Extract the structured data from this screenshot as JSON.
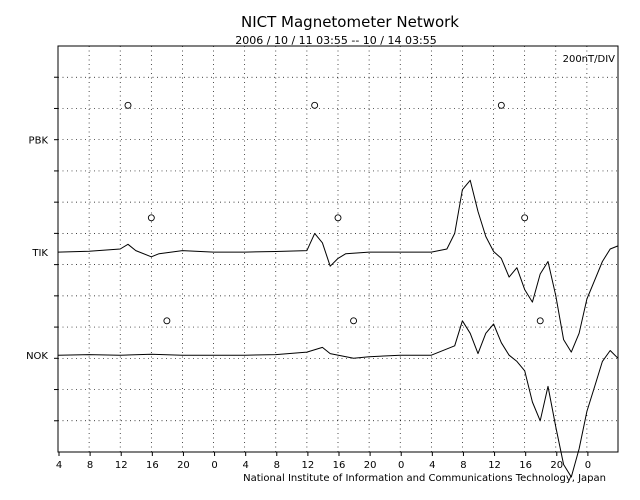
{
  "chart_data": {
    "type": "line",
    "title": "NICT Magnetometer Network",
    "subtitle": "2006 / 10 / 11   03:55 -- 10 / 14   03:55",
    "scale_label": "200nT/DIV",
    "footer": "National Institute of Information and Communications Technology, Japan",
    "x_tick_labels": [
      "4",
      "8",
      "12",
      "16",
      "20",
      "0",
      "4",
      "8",
      "12",
      "16",
      "20",
      "0",
      "4",
      "8",
      "12",
      "16",
      "20",
      "0"
    ],
    "x_range_hours": [
      0,
      72
    ],
    "y_divisions": 13,
    "grid": true,
    "series": [
      {
        "name": "PBK",
        "baseline_div": 3,
        "values": [],
        "midnight_markers_hours": [
          9,
          33,
          57
        ]
      },
      {
        "name": "TIK",
        "baseline_div": 6.6,
        "midnight_markers_hours": [
          12,
          36,
          60
        ],
        "values": [
          [
            0,
            0
          ],
          [
            4,
            0.03
          ],
          [
            8,
            0.1
          ],
          [
            9,
            0.25
          ],
          [
            10,
            0.05
          ],
          [
            12,
            -0.15
          ],
          [
            13,
            -0.05
          ],
          [
            16,
            0.05
          ],
          [
            20,
            0
          ],
          [
            24,
            0
          ],
          [
            28,
            0.02
          ],
          [
            32,
            0.05
          ],
          [
            33,
            0.6
          ],
          [
            34,
            0.3
          ],
          [
            35,
            -0.45
          ],
          [
            36,
            -0.2
          ],
          [
            37,
            -0.05
          ],
          [
            40,
            0
          ],
          [
            44,
            0
          ],
          [
            48,
            0
          ],
          [
            50,
            0.1
          ],
          [
            51,
            0.6
          ],
          [
            52,
            2.0
          ],
          [
            53,
            2.3
          ],
          [
            54,
            1.3
          ],
          [
            55,
            0.5
          ],
          [
            56,
            0.02
          ],
          [
            57,
            -0.2
          ],
          [
            58,
            -0.8
          ],
          [
            59,
            -0.5
          ],
          [
            60,
            -1.2
          ],
          [
            61,
            -1.6
          ],
          [
            62,
            -0.7
          ],
          [
            63,
            -0.3
          ],
          [
            64,
            -1.4
          ],
          [
            65,
            -2.8
          ],
          [
            66,
            -3.2
          ],
          [
            67,
            -2.6
          ],
          [
            68,
            -1.5
          ],
          [
            69,
            -0.9
          ],
          [
            70,
            -0.3
          ],
          [
            71,
            0.1
          ],
          [
            72,
            0.2
          ]
        ]
      },
      {
        "name": "NOK",
        "baseline_div": 9.9,
        "midnight_markers_hours": [
          14,
          38,
          62
        ],
        "values": [
          [
            0,
            0
          ],
          [
            4,
            0.02
          ],
          [
            8,
            0
          ],
          [
            12,
            0.03
          ],
          [
            16,
            0
          ],
          [
            20,
            0
          ],
          [
            24,
            0
          ],
          [
            28,
            0.02
          ],
          [
            32,
            0.1
          ],
          [
            34,
            0.25
          ],
          [
            35,
            0.05
          ],
          [
            38,
            -0.1
          ],
          [
            40,
            -0.05
          ],
          [
            44,
            0
          ],
          [
            48,
            0
          ],
          [
            51,
            0.3
          ],
          [
            52,
            1.1
          ],
          [
            53,
            0.7
          ],
          [
            54,
            0.05
          ],
          [
            55,
            0.7
          ],
          [
            56,
            1.0
          ],
          [
            57,
            0.4
          ],
          [
            58,
            0
          ],
          [
            59,
            -0.2
          ],
          [
            60,
            -0.5
          ],
          [
            61,
            -1.5
          ],
          [
            62,
            -2.1
          ],
          [
            63,
            -1.0
          ],
          [
            64,
            -2.3
          ],
          [
            65,
            -3.5
          ],
          [
            66,
            -3.9
          ],
          [
            67,
            -3.0
          ],
          [
            68,
            -1.8
          ],
          [
            69,
            -1.0
          ],
          [
            70,
            -0.2
          ],
          [
            71,
            0.15
          ],
          [
            72,
            -0.1
          ]
        ]
      }
    ]
  }
}
